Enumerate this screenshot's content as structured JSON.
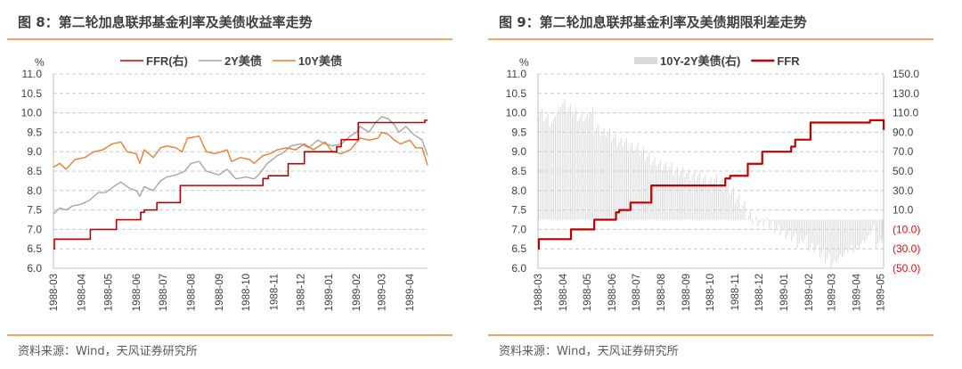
{
  "panels": [
    {
      "title": "图 8：第二轮加息联邦基金利率及美债收益率走势",
      "source": "资料来源：Wind，天风证券研究所"
    },
    {
      "title": "图 9：第二轮加息联邦基金利率及美债期限利差走势",
      "source": "资料来源：Wind，天风证券研究所"
    }
  ],
  "colors": {
    "ffr": "#c00000",
    "y2": "#a6a6a6",
    "y10": "#ed7d31",
    "spread": "#d9d9d9",
    "negative_label": "#ff0000",
    "axis_text": "#404040",
    "rule": "#f4a460"
  },
  "chart_data": [
    {
      "type": "line",
      "unit": "%",
      "ylim": [
        6.0,
        11.0
      ],
      "yticks": [
        "6.0",
        "6.5",
        "7.0",
        "7.5",
        "8.0",
        "8.5",
        "9.0",
        "9.5",
        "10.0",
        "10.5",
        "11.0"
      ],
      "xlim": [
        "1988-03-01",
        "1989-04-21"
      ],
      "xticks": [
        "1988-03",
        "1988-04",
        "1988-05",
        "1988-06",
        "1988-07",
        "1988-08",
        "1988-09",
        "1988-10",
        "1988-11",
        "1988-12",
        "1989-01",
        "1989-02",
        "1989-03",
        "1989-04"
      ],
      "grid": true,
      "legend": "top",
      "series": [
        {
          "name": "FFR(右)",
          "key": "ffr",
          "step": true,
          "points": [
            [
              "1988-03-01",
              6.5
            ],
            [
              "1988-03-02",
              6.75
            ],
            [
              "1988-04-11",
              7.0
            ],
            [
              "1988-05-10",
              7.25
            ],
            [
              "1988-06-06",
              7.44
            ],
            [
              "1988-06-10",
              7.5
            ],
            [
              "1988-06-24",
              7.69
            ],
            [
              "1988-07-20",
              8.13
            ],
            [
              "1988-10-20",
              8.31
            ],
            [
              "1988-10-26",
              8.38
            ],
            [
              "1988-11-17",
              8.69
            ],
            [
              "1988-12-05",
              9.0
            ],
            [
              "1989-01-10",
              9.13
            ],
            [
              "1989-01-15",
              9.31
            ],
            [
              "1989-02-03",
              9.75
            ],
            [
              "1989-04-18",
              9.81
            ],
            [
              "1989-04-21",
              9.81
            ]
          ]
        },
        {
          "name": "2Y美债",
          "key": "y2",
          "points": [
            [
              "1988-03-01",
              7.4
            ],
            [
              "1988-03-08",
              7.55
            ],
            [
              "1988-03-15",
              7.5
            ],
            [
              "1988-03-22",
              7.6
            ],
            [
              "1988-04-01",
              7.65
            ],
            [
              "1988-04-10",
              7.75
            ],
            [
              "1988-04-20",
              7.95
            ],
            [
              "1988-04-28",
              7.95
            ],
            [
              "1988-05-10",
              8.15
            ],
            [
              "1988-05-15",
              8.22
            ],
            [
              "1988-05-25",
              8.05
            ],
            [
              "1988-06-01",
              8.0
            ],
            [
              "1988-06-05",
              7.85
            ],
            [
              "1988-06-10",
              8.1
            ],
            [
              "1988-06-20",
              8.0
            ],
            [
              "1988-06-28",
              8.25
            ],
            [
              "1988-07-05",
              8.35
            ],
            [
              "1988-07-15",
              8.4
            ],
            [
              "1988-07-25",
              8.5
            ],
            [
              "1988-08-01",
              8.7
            ],
            [
              "1988-08-10",
              8.75
            ],
            [
              "1988-08-18",
              8.5
            ],
            [
              "1988-08-25",
              8.45
            ],
            [
              "1988-09-01",
              8.4
            ],
            [
              "1988-09-10",
              8.55
            ],
            [
              "1988-09-20",
              8.3
            ],
            [
              "1988-10-01",
              8.35
            ],
            [
              "1988-10-10",
              8.3
            ],
            [
              "1988-10-15",
              8.4
            ],
            [
              "1988-10-25",
              8.7
            ],
            [
              "1988-11-05",
              8.9
            ],
            [
              "1988-11-10",
              8.95
            ],
            [
              "1988-11-20",
              9.15
            ],
            [
              "1988-12-01",
              9.2
            ],
            [
              "1988-12-10",
              9.1
            ],
            [
              "1988-12-20",
              9.3
            ],
            [
              "1988-12-28",
              9.2
            ],
            [
              "1989-01-05",
              9.15
            ],
            [
              "1989-01-15",
              9.2
            ],
            [
              "1989-01-25",
              9.4
            ],
            [
              "1989-02-01",
              9.5
            ],
            [
              "1989-02-05",
              9.65
            ],
            [
              "1989-02-15",
              9.5
            ],
            [
              "1989-02-22",
              9.75
            ],
            [
              "1989-03-01",
              9.9
            ],
            [
              "1989-03-08",
              9.85
            ],
            [
              "1989-03-15",
              9.7
            ],
            [
              "1989-03-20",
              9.5
            ],
            [
              "1989-03-28",
              9.65
            ],
            [
              "1989-04-05",
              9.45
            ],
            [
              "1989-04-15",
              9.3
            ],
            [
              "1989-04-21",
              8.9
            ]
          ]
        },
        {
          "name": "10Y美债",
          "key": "y10",
          "points": [
            [
              "1988-03-01",
              8.6
            ],
            [
              "1988-03-08",
              8.7
            ],
            [
              "1988-03-15",
              8.55
            ],
            [
              "1988-03-25",
              8.8
            ],
            [
              "1988-04-05",
              8.85
            ],
            [
              "1988-04-15",
              9.0
            ],
            [
              "1988-04-25",
              9.05
            ],
            [
              "1988-05-05",
              9.2
            ],
            [
              "1988-05-15",
              9.25
            ],
            [
              "1988-05-22",
              9.0
            ],
            [
              "1988-06-01",
              8.95
            ],
            [
              "1988-06-05",
              8.7
            ],
            [
              "1988-06-10",
              9.05
            ],
            [
              "1988-06-20",
              8.85
            ],
            [
              "1988-06-28",
              9.1
            ],
            [
              "1988-07-05",
              9.15
            ],
            [
              "1988-07-15",
              9.1
            ],
            [
              "1988-07-22",
              9.0
            ],
            [
              "1988-07-28",
              9.35
            ],
            [
              "1988-08-10",
              9.4
            ],
            [
              "1988-08-18",
              9.0
            ],
            [
              "1988-08-28",
              8.95
            ],
            [
              "1988-09-10",
              9.05
            ],
            [
              "1988-09-15",
              8.75
            ],
            [
              "1988-09-25",
              8.85
            ],
            [
              "1988-10-05",
              8.8
            ],
            [
              "1988-10-10",
              8.7
            ],
            [
              "1988-10-20",
              8.9
            ],
            [
              "1988-10-28",
              8.95
            ],
            [
              "1988-11-05",
              9.05
            ],
            [
              "1988-11-15",
              9.1
            ],
            [
              "1988-11-25",
              9.05
            ],
            [
              "1988-12-05",
              9.2
            ],
            [
              "1988-12-15",
              9.05
            ],
            [
              "1988-12-28",
              9.25
            ],
            [
              "1989-01-05",
              9.0
            ],
            [
              "1989-01-15",
              8.95
            ],
            [
              "1989-01-25",
              9.05
            ],
            [
              "1989-02-05",
              9.35
            ],
            [
              "1989-02-15",
              9.3
            ],
            [
              "1989-02-25",
              9.35
            ],
            [
              "1989-03-01",
              9.5
            ],
            [
              "1989-03-08",
              9.45
            ],
            [
              "1989-03-15",
              9.3
            ],
            [
              "1989-03-22",
              9.2
            ],
            [
              "1989-04-01",
              9.3
            ],
            [
              "1989-04-08",
              9.1
            ],
            [
              "1989-04-15",
              9.1
            ],
            [
              "1989-04-21",
              8.65
            ]
          ]
        }
      ]
    },
    {
      "type": "bar+line",
      "unit": "%",
      "ylim": [
        6.0,
        11.0
      ],
      "yticks": [
        "6.0",
        "6.5",
        "7.0",
        "7.5",
        "8.0",
        "8.5",
        "9.0",
        "9.5",
        "10.0",
        "10.5",
        "11.0"
      ],
      "y2lim": [
        -50,
        150
      ],
      "y2ticks": [
        "(50.0)",
        "(30.0)",
        "(10.0)",
        "10.0",
        "30.0",
        "50.0",
        "70.0",
        "90.0",
        "110.0",
        "130.0",
        "150.0"
      ],
      "xlim": [
        "1988-03-01",
        "1989-05-05"
      ],
      "xticks": [
        "1988-03",
        "1988-04",
        "1988-05",
        "1988-06",
        "1988-07",
        "1988-08",
        "1988-09",
        "1988-10",
        "1988-11",
        "1988-12",
        "1989-01",
        "1989-02",
        "1989-03",
        "1989-04",
        "1989-05"
      ],
      "grid": true,
      "legend": "top",
      "bars": {
        "name": "10Y-2Y美债(右)",
        "key": "spread",
        "points": [
          [
            "1988-03-01",
            110
          ],
          [
            "1988-03-08",
            105
          ],
          [
            "1988-03-15",
            100
          ],
          [
            "1988-03-22",
            110
          ],
          [
            "1988-03-29",
            120
          ],
          [
            "1988-04-05",
            115
          ],
          [
            "1988-04-12",
            110
          ],
          [
            "1988-04-19",
            105
          ],
          [
            "1988-04-26",
            105
          ],
          [
            "1988-05-03",
            110
          ],
          [
            "1988-05-10",
            95
          ],
          [
            "1988-05-17",
            90
          ],
          [
            "1988-05-24",
            90
          ],
          [
            "1988-05-31",
            85
          ],
          [
            "1988-06-07",
            80
          ],
          [
            "1988-06-14",
            80
          ],
          [
            "1988-06-21",
            75
          ],
          [
            "1988-06-28",
            75
          ],
          [
            "1988-07-05",
            70
          ],
          [
            "1988-07-12",
            65
          ],
          [
            "1988-07-19",
            60
          ],
          [
            "1988-07-26",
            58
          ],
          [
            "1988-08-02",
            55
          ],
          [
            "1988-08-09",
            55
          ],
          [
            "1988-08-16",
            50
          ],
          [
            "1988-08-23",
            50
          ],
          [
            "1988-08-30",
            48
          ],
          [
            "1988-09-06",
            45
          ],
          [
            "1988-09-13",
            45
          ],
          [
            "1988-09-20",
            42
          ],
          [
            "1988-09-27",
            40
          ],
          [
            "1988-10-04",
            42
          ],
          [
            "1988-10-11",
            40
          ],
          [
            "1988-10-18",
            35
          ],
          [
            "1988-10-25",
            30
          ],
          [
            "1988-11-01",
            22
          ],
          [
            "1988-11-08",
            15
          ],
          [
            "1988-11-15",
            5
          ],
          [
            "1988-11-22",
            0
          ],
          [
            "1988-11-29",
            -3
          ],
          [
            "1988-12-06",
            -2
          ],
          [
            "1988-12-13",
            -5
          ],
          [
            "1988-12-20",
            -10
          ],
          [
            "1988-12-27",
            -12
          ],
          [
            "1989-01-03",
            -15
          ],
          [
            "1989-01-10",
            -18
          ],
          [
            "1989-01-17",
            -25
          ],
          [
            "1989-01-24",
            -20
          ],
          [
            "1989-01-31",
            -28
          ],
          [
            "1989-02-07",
            -30
          ],
          [
            "1989-02-14",
            -35
          ],
          [
            "1989-02-21",
            -40
          ],
          [
            "1989-02-28",
            -45
          ],
          [
            "1989-03-07",
            -40
          ],
          [
            "1989-03-14",
            -35
          ],
          [
            "1989-03-21",
            -30
          ],
          [
            "1989-03-28",
            -30
          ],
          [
            "1989-04-04",
            -25
          ],
          [
            "1989-04-11",
            -20
          ],
          [
            "1989-04-18",
            -10
          ],
          [
            "1989-04-25",
            -25
          ],
          [
            "1989-05-02",
            -20
          ]
        ]
      },
      "series": [
        {
          "name": "FFR",
          "key": "ffr",
          "step": true,
          "points": [
            [
              "1988-03-01",
              6.5
            ],
            [
              "1988-03-02",
              6.75
            ],
            [
              "1988-04-11",
              7.0
            ],
            [
              "1988-05-10",
              7.25
            ],
            [
              "1988-06-06",
              7.44
            ],
            [
              "1988-06-10",
              7.5
            ],
            [
              "1988-06-24",
              7.69
            ],
            [
              "1988-07-20",
              8.13
            ],
            [
              "1988-10-20",
              8.31
            ],
            [
              "1988-10-26",
              8.38
            ],
            [
              "1988-11-17",
              8.69
            ],
            [
              "1988-12-05",
              9.0
            ],
            [
              "1989-01-10",
              9.13
            ],
            [
              "1989-01-15",
              9.31
            ],
            [
              "1989-02-03",
              9.75
            ],
            [
              "1989-04-18",
              9.81
            ],
            [
              "1989-05-04",
              9.81
            ],
            [
              "1989-05-05",
              9.56
            ]
          ]
        }
      ]
    }
  ]
}
